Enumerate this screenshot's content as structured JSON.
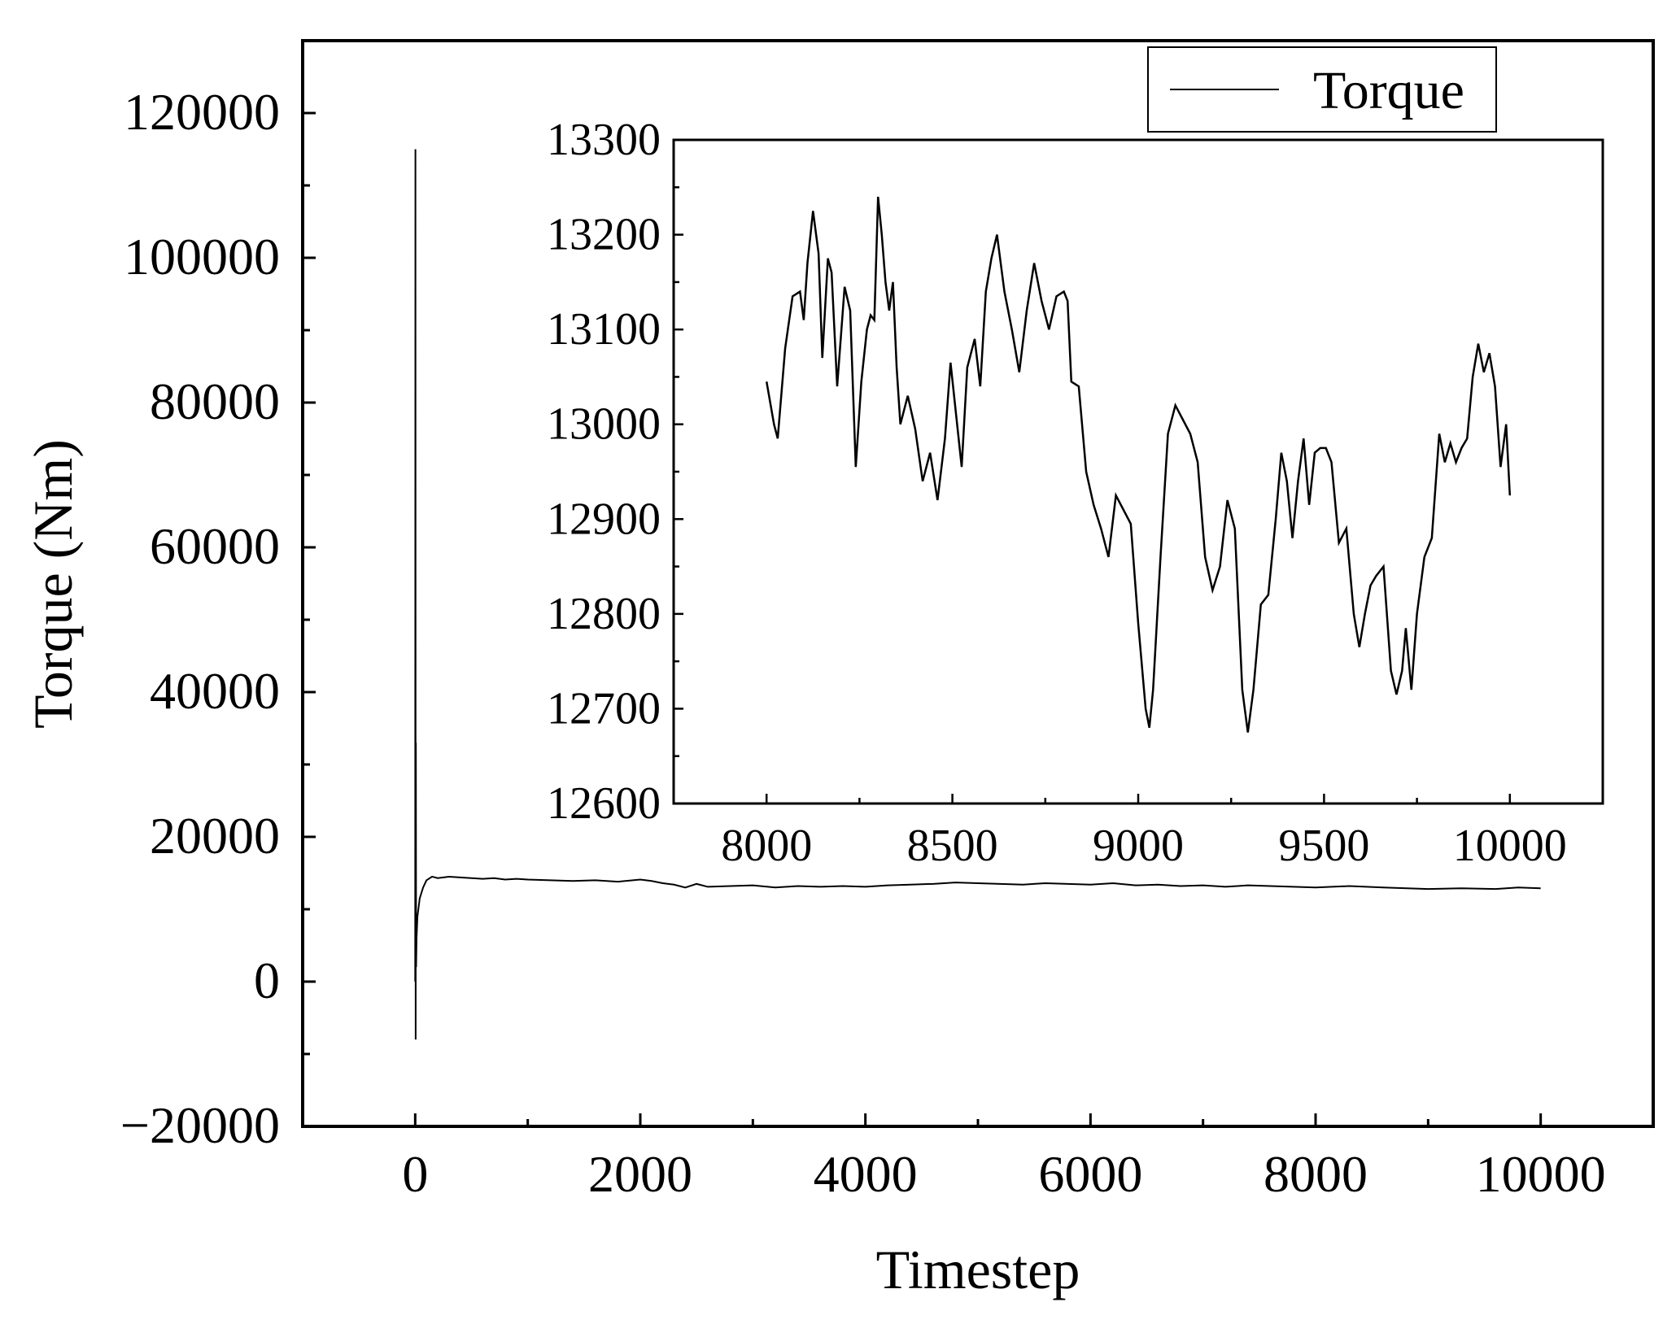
{
  "chart_data": [
    {
      "id": "main",
      "type": "line",
      "title": "",
      "xlabel": "Timestep",
      "ylabel": "Torque (Nm)",
      "xlim": [
        -1000,
        11000
      ],
      "ylim": [
        -20000,
        130000
      ],
      "xticks": [
        0,
        2000,
        4000,
        6000,
        8000,
        10000
      ],
      "yticks": [
        -20000,
        0,
        20000,
        40000,
        60000,
        80000,
        100000,
        120000
      ],
      "xtick_labels": [
        "0",
        "2000",
        "4000",
        "6000",
        "8000",
        "10000"
      ],
      "ytick_labels": [
        "−20000",
        "0",
        "20000",
        "40000",
        "60000",
        "80000",
        "100000",
        "120000"
      ],
      "grid": false,
      "legend": {
        "position": "top-right",
        "entries": [
          "Torque"
        ]
      },
      "series": [
        {
          "name": "Torque",
          "color": "#000000",
          "points": [
            [
              0,
              0
            ],
            [
              2,
              115000
            ],
            [
              4,
              -8000
            ],
            [
              6,
              33000
            ],
            [
              8,
              2000
            ],
            [
              12,
              6000
            ],
            [
              20,
              9000
            ],
            [
              40,
              11500
            ],
            [
              70,
              13000
            ],
            [
              100,
              14000
            ],
            [
              150,
              14500
            ],
            [
              200,
              14300
            ],
            [
              300,
              14500
            ],
            [
              400,
              14400
            ],
            [
              500,
              14300
            ],
            [
              600,
              14200
            ],
            [
              700,
              14300
            ],
            [
              800,
              14100
            ],
            [
              900,
              14200
            ],
            [
              1000,
              14100
            ],
            [
              1200,
              14000
            ],
            [
              1400,
              13900
            ],
            [
              1600,
              14000
            ],
            [
              1800,
              13800
            ],
            [
              2000,
              14100
            ],
            [
              2100,
              13900
            ],
            [
              2200,
              13600
            ],
            [
              2300,
              13400
            ],
            [
              2400,
              13000
            ],
            [
              2500,
              13500
            ],
            [
              2600,
              13100
            ],
            [
              2800,
              13200
            ],
            [
              3000,
              13300
            ],
            [
              3200,
              13000
            ],
            [
              3400,
              13200
            ],
            [
              3600,
              13100
            ],
            [
              3800,
              13200
            ],
            [
              4000,
              13100
            ],
            [
              4200,
              13300
            ],
            [
              4400,
              13400
            ],
            [
              4600,
              13500
            ],
            [
              4800,
              13700
            ],
            [
              5000,
              13600
            ],
            [
              5200,
              13500
            ],
            [
              5400,
              13400
            ],
            [
              5600,
              13600
            ],
            [
              5800,
              13500
            ],
            [
              6000,
              13400
            ],
            [
              6200,
              13600
            ],
            [
              6400,
              13300
            ],
            [
              6600,
              13400
            ],
            [
              6800,
              13200
            ],
            [
              7000,
              13300
            ],
            [
              7200,
              13100
            ],
            [
              7400,
              13300
            ],
            [
              7600,
              13200
            ],
            [
              7800,
              13100
            ],
            [
              8000,
              13000
            ],
            [
              8300,
              13200
            ],
            [
              8600,
              13000
            ],
            [
              9000,
              12800
            ],
            [
              9300,
              12900
            ],
            [
              9600,
              12800
            ],
            [
              9800,
              13000
            ],
            [
              10000,
              12900
            ]
          ]
        }
      ]
    },
    {
      "id": "inset",
      "type": "line",
      "title": "",
      "xlabel": "",
      "ylabel": "",
      "xlim": [
        7750,
        10250
      ],
      "ylim": [
        12600,
        13300
      ],
      "xticks": [
        8000,
        8500,
        9000,
        9500,
        10000
      ],
      "yticks": [
        12600,
        12700,
        12800,
        12900,
        13000,
        13100,
        13200,
        13300
      ],
      "xtick_labels": [
        "8000",
        "8500",
        "9000",
        "9500",
        "10000"
      ],
      "ytick_labels": [
        "12600",
        "12700",
        "12800",
        "12900",
        "13000",
        "13100",
        "13200",
        "13300"
      ],
      "grid": false,
      "series": [
        {
          "name": "Torque",
          "color": "#000000",
          "points": [
            [
              8000,
              13045
            ],
            [
              8020,
              13000
            ],
            [
              8030,
              12985
            ],
            [
              8050,
              13080
            ],
            [
              8070,
              13135
            ],
            [
              8090,
              13140
            ],
            [
              8100,
              13110
            ],
            [
              8110,
              13170
            ],
            [
              8125,
              13225
            ],
            [
              8140,
              13180
            ],
            [
              8150,
              13070
            ],
            [
              8165,
              13175
            ],
            [
              8175,
              13160
            ],
            [
              8190,
              13040
            ],
            [
              8210,
              13145
            ],
            [
              8225,
              13120
            ],
            [
              8240,
              12955
            ],
            [
              8255,
              13045
            ],
            [
              8270,
              13100
            ],
            [
              8280,
              13115
            ],
            [
              8290,
              13110
            ],
            [
              8300,
              13240
            ],
            [
              8310,
              13200
            ],
            [
              8320,
              13150
            ],
            [
              8330,
              13120
            ],
            [
              8340,
              13150
            ],
            [
              8350,
              13060
            ],
            [
              8360,
              13000
            ],
            [
              8380,
              13030
            ],
            [
              8400,
              12995
            ],
            [
              8420,
              12940
            ],
            [
              8440,
              12970
            ],
            [
              8460,
              12920
            ],
            [
              8480,
              12985
            ],
            [
              8495,
              13065
            ],
            [
              8510,
              13010
            ],
            [
              8525,
              12955
            ],
            [
              8540,
              13060
            ],
            [
              8560,
              13090
            ],
            [
              8575,
              13040
            ],
            [
              8590,
              13140
            ],
            [
              8605,
              13175
            ],
            [
              8620,
              13200
            ],
            [
              8640,
              13140
            ],
            [
              8660,
              13100
            ],
            [
              8680,
              13055
            ],
            [
              8700,
              13120
            ],
            [
              8720,
              13170
            ],
            [
              8740,
              13130
            ],
            [
              8760,
              13100
            ],
            [
              8780,
              13135
            ],
            [
              8800,
              13140
            ],
            [
              8810,
              13130
            ],
            [
              8820,
              13045
            ],
            [
              8840,
              13040
            ],
            [
              8860,
              12950
            ],
            [
              8880,
              12915
            ],
            [
              8900,
              12890
            ],
            [
              8920,
              12860
            ],
            [
              8940,
              12925
            ],
            [
              8960,
              12910
            ],
            [
              8980,
              12895
            ],
            [
              9000,
              12790
            ],
            [
              9020,
              12700
            ],
            [
              9030,
              12680
            ],
            [
              9040,
              12720
            ],
            [
              9060,
              12860
            ],
            [
              9080,
              12990
            ],
            [
              9100,
              13020
            ],
            [
              9120,
              13005
            ],
            [
              9140,
              12990
            ],
            [
              9160,
              12960
            ],
            [
              9180,
              12860
            ],
            [
              9200,
              12825
            ],
            [
              9220,
              12850
            ],
            [
              9240,
              12920
            ],
            [
              9260,
              12890
            ],
            [
              9280,
              12720
            ],
            [
              9295,
              12675
            ],
            [
              9310,
              12720
            ],
            [
              9330,
              12810
            ],
            [
              9350,
              12820
            ],
            [
              9370,
              12900
            ],
            [
              9385,
              12970
            ],
            [
              9400,
              12940
            ],
            [
              9415,
              12880
            ],
            [
              9430,
              12940
            ],
            [
              9445,
              12985
            ],
            [
              9460,
              12915
            ],
            [
              9475,
              12970
            ],
            [
              9490,
              12975
            ],
            [
              9505,
              12975
            ],
            [
              9520,
              12960
            ],
            [
              9540,
              12875
            ],
            [
              9560,
              12890
            ],
            [
              9580,
              12800
            ],
            [
              9595,
              12765
            ],
            [
              9610,
              12800
            ],
            [
              9625,
              12830
            ],
            [
              9640,
              12840
            ],
            [
              9660,
              12850
            ],
            [
              9680,
              12740
            ],
            [
              9695,
              12715
            ],
            [
              9710,
              12740
            ],
            [
              9720,
              12785
            ],
            [
              9735,
              12720
            ],
            [
              9750,
              12800
            ],
            [
              9770,
              12860
            ],
            [
              9790,
              12880
            ],
            [
              9810,
              12990
            ],
            [
              9825,
              12960
            ],
            [
              9840,
              12980
            ],
            [
              9855,
              12960
            ],
            [
              9870,
              12975
            ],
            [
              9885,
              12985
            ],
            [
              9900,
              13050
            ],
            [
              9915,
              13085
            ],
            [
              9930,
              13055
            ],
            [
              9945,
              13075
            ],
            [
              9960,
              13040
            ],
            [
              9975,
              12955
            ],
            [
              9990,
              13000
            ],
            [
              10000,
              12925
            ]
          ]
        }
      ]
    }
  ]
}
